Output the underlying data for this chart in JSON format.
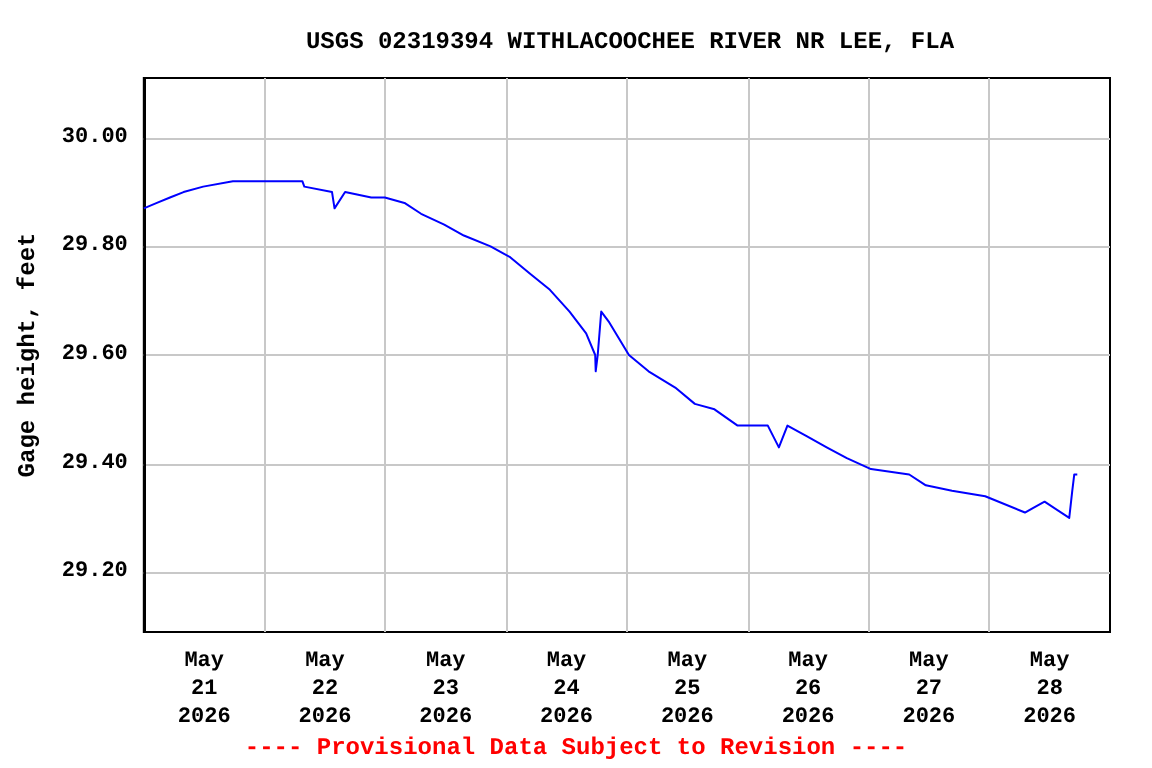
{
  "chart_data": {
    "type": "line",
    "title": "USGS 02319394 WITHLACOOCHEE RIVER NR LEE, FLA",
    "ylabel": "Gage height, feet",
    "annotations": [
      "---- Provisional Data Subject to Revision ----"
    ],
    "x": [
      "2026-05-21T00:00",
      "2026-05-21T02:36",
      "2026-05-21T05:12",
      "2026-05-21T07:54",
      "2026-05-21T11:48",
      "2026-05-21T17:42",
      "2026-05-22T07:30",
      "2026-05-22T07:54",
      "2026-05-22T13:24",
      "2026-05-22T13:54",
      "2026-05-22T16:00",
      "2026-05-22T21:12",
      "2026-05-22T23:54",
      "2026-05-23T03:48",
      "2026-05-23T07:06",
      "2026-05-23T11:42",
      "2026-05-23T15:36",
      "2026-05-23T20:54",
      "2026-05-24T00:48",
      "2026-05-24T04:42",
      "2026-05-24T08:42",
      "2026-05-24T12:36",
      "2026-05-24T15:54",
      "2026-05-24T17:42",
      "2026-05-24T17:48",
      "2026-05-24T18:12",
      "2026-05-24T18:54",
      "2026-05-24T20:30",
      "2026-05-25T00:24",
      "2026-05-25T04:18",
      "2026-05-25T09:36",
      "2026-05-25T13:30",
      "2026-05-25T17:24",
      "2026-05-25T22:00",
      "2026-05-26T04:00",
      "2026-05-26T06:12",
      "2026-05-26T07:54",
      "2026-05-26T11:48",
      "2026-05-26T15:42",
      "2026-05-26T19:42",
      "2026-05-27T00:30",
      "2026-05-27T08:06",
      "2026-05-27T11:24",
      "2026-05-27T16:36",
      "2026-05-27T23:12",
      "2026-05-28T07:06",
      "2026-05-28T11:00",
      "2026-05-28T15:54",
      "2026-05-28T16:30",
      "2026-05-28T16:54",
      "2026-05-28T17:30"
    ],
    "series": [
      {
        "color": "#0000ff",
        "values": [
          29.87,
          29.88,
          29.89,
          29.9,
          29.91,
          29.92,
          29.92,
          29.91,
          29.9,
          29.87,
          29.9,
          29.89,
          29.89,
          29.88,
          29.86,
          29.84,
          29.82,
          29.8,
          29.78,
          29.75,
          29.72,
          29.68,
          29.64,
          29.6,
          29.57,
          29.6,
          29.68,
          29.66,
          29.6,
          29.57,
          29.54,
          29.51,
          29.5,
          29.47,
          29.47,
          29.43,
          29.47,
          29.45,
          29.43,
          29.41,
          29.39,
          29.38,
          29.36,
          29.35,
          29.34,
          29.31,
          29.33,
          29.3,
          29.35,
          29.38,
          29.38
        ]
      }
    ],
    "xlim": [
      "2026-05-21T00:00",
      "2026-05-29T00:00"
    ],
    "xticks": [
      {
        "value": "2026-05-21T12:00",
        "label": "May\n21\n2026"
      },
      {
        "value": "2026-05-22T12:00",
        "label": "May\n22\n2026"
      },
      {
        "value": "2026-05-23T12:00",
        "label": "May\n23\n2026"
      },
      {
        "value": "2026-05-24T12:00",
        "label": "May\n24\n2026"
      },
      {
        "value": "2026-05-25T12:00",
        "label": "May\n25\n2026"
      },
      {
        "value": "2026-05-26T12:00",
        "label": "May\n26\n2026"
      },
      {
        "value": "2026-05-27T12:00",
        "label": "May\n27\n2026"
      },
      {
        "value": "2026-05-28T12:00",
        "label": "May\n28\n2026"
      },
      {
        "value": "2026-05-22T00:00",
        "label": null
      },
      {
        "value": "2026-05-23T00:00",
        "label": null
      },
      {
        "value": "2026-05-24T00:00",
        "label": null
      },
      {
        "value": "2026-05-25T00:00",
        "label": null
      },
      {
        "value": "2026-05-26T00:00",
        "label": null
      },
      {
        "value": "2026-05-27T00:00",
        "label": null
      },
      {
        "value": "2026-05-28T00:00",
        "label": null
      }
    ],
    "ylim": [
      29.09,
      30.11
    ],
    "yticks": [
      {
        "value": 29.2,
        "label": "29.20"
      },
      {
        "value": 29.4,
        "label": "29.40"
      },
      {
        "value": 29.6,
        "label": "29.60"
      },
      {
        "value": 29.8,
        "label": "29.80"
      },
      {
        "value": 30.0,
        "label": "30.00"
      }
    ],
    "grid": true
  }
}
